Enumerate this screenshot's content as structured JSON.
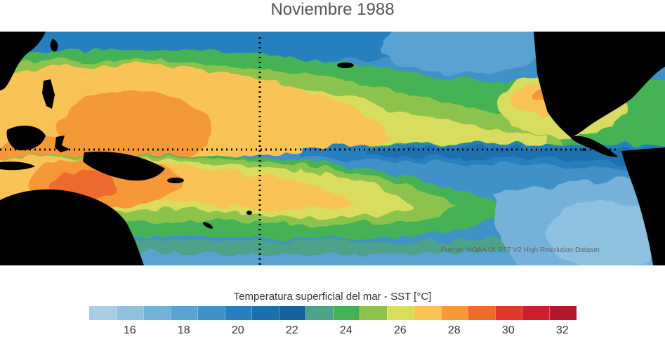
{
  "title": "Noviembre 1988",
  "source_note": "Fuente: NOAA OI SST V2 High Resolution Dataset",
  "colorbar": {
    "label": "Temperatura superficial del mar - SST  [°C]",
    "min": 15,
    "max": 33,
    "step": 1,
    "colors": [
      "#a8cde6",
      "#8ec0e0",
      "#74b1d9",
      "#5aa2d1",
      "#3f91c8",
      "#2780bd",
      "#1b6fad",
      "#17619e",
      "#4da28a",
      "#45b255",
      "#8cc34d",
      "#d8dd5e",
      "#f9c454",
      "#f59939",
      "#ee6a2e",
      "#e0382a",
      "#cc1f2b",
      "#b3192a"
    ],
    "ticks": [
      16,
      18,
      20,
      22,
      24,
      26,
      28,
      30,
      32
    ]
  },
  "map": {
    "land_color": "#000000",
    "reference_lines": [
      "equator",
      "meridian_180"
    ]
  }
}
